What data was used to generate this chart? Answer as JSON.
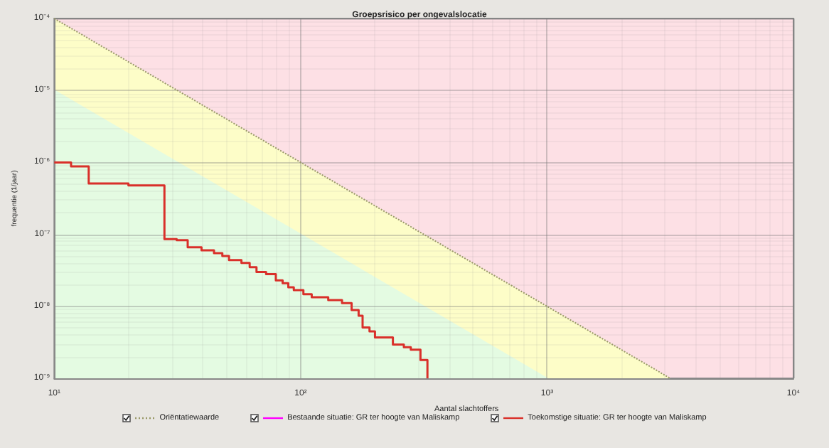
{
  "chart_data": {
    "type": "step",
    "title": "Groepsrisico per ongevalslocatie",
    "xlabel": "Aantal slachtoffers",
    "ylabel": "frequentie (1/jaar)",
    "log": "xy",
    "grid": true,
    "legend": "bottom",
    "marker": "none",
    "xlim": [
      10,
      10000
    ],
    "xticks": [
      {
        "value": 10,
        "label": "10¹"
      },
      {
        "value": 100,
        "label": "10²"
      },
      {
        "value": 1000,
        "label": "10³"
      },
      {
        "value": 10000,
        "label": "10⁴"
      }
    ],
    "ylim": [
      1e-09,
      0.0001
    ],
    "yticks": [
      {
        "value": 1e-09,
        "label": "10⁻⁹"
      },
      {
        "value": 1e-08,
        "label": "10⁻⁸"
      },
      {
        "value": 1e-07,
        "label": "10⁻⁷"
      },
      {
        "value": 1e-06,
        "label": "10⁻⁶"
      },
      {
        "value": 1e-05,
        "label": "10⁻⁵"
      },
      {
        "value": 0.0001,
        "label": "10⁻⁴"
      }
    ],
    "series": [
      {
        "type": "area",
        "color": "#e4fbe2",
        "x": [
          10,
          1000
        ],
        "values": [
          1e-05,
          1e-09
        ]
      },
      {
        "type": "line",
        "name": "Oriëntatiewaarde",
        "color": "#9a9a6a",
        "line_style": "dotted",
        "x": [
          10,
          1000,
          3162
        ],
        "values": [
          0.0001,
          1e-08,
          1e-09
        ],
        "lower": [
          1e-05,
          1e-09,
          1e-09
        ],
        "upper": [
          0.0001,
          1e-08,
          1e-09
        ]
      },
      {
        "name": "Bestaande situatie: GR ter hoogte van Maliskamp",
        "color": "#ff00ff",
        "line_style": "solid"
      },
      {
        "name": "Toekomstige situatie: GR ter hoogte van Maliskamp",
        "color": "#d9302a",
        "line_style": "solid",
        "x": [
          10,
          11.7,
          13.8,
          20,
          28,
          31.4,
          34.8,
          39.6,
          44.5,
          48.1,
          51.2,
          57.5,
          62.1,
          66.2,
          72.4,
          79.3,
          84.5,
          89.1,
          93.8,
          102.6,
          110.9,
          129.4,
          147.2,
          161,
          171.9,
          178.4,
          190.3,
          200.3,
          236.8,
          262.3,
          279.9,
          306.4,
          327
        ],
        "values": [
          1e-06,
          8.8e-07,
          5.1e-07,
          4.8e-07,
          8.6e-08,
          8.3e-08,
          6.6e-08,
          6e-08,
          5.5e-08,
          5e-08,
          4.4e-08,
          4e-08,
          3.5e-08,
          3e-08,
          2.8e-08,
          2.3e-08,
          2.1e-08,
          1.84e-08,
          1.68e-08,
          1.47e-08,
          1.34e-08,
          1.22e-08,
          1.11e-08,
          8.9e-09,
          7.4e-09,
          5.1e-09,
          4.5e-09,
          3.7e-09,
          2.95e-09,
          2.7e-09,
          2.5e-09,
          1.8e-09,
          1e-09
        ]
      }
    ]
  }
}
